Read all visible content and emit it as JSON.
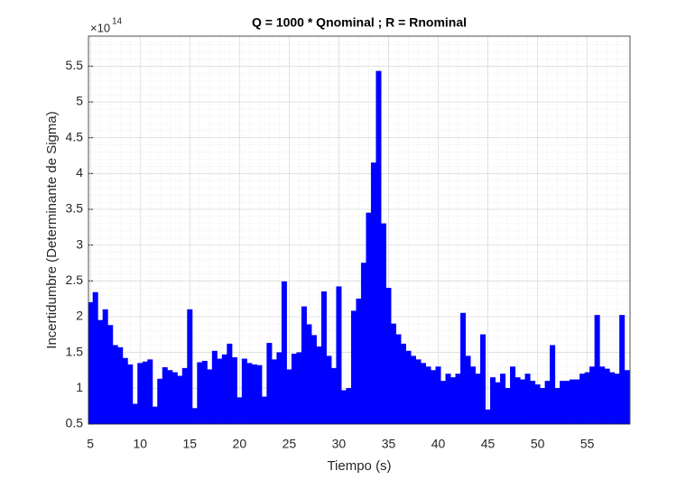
{
  "chart_data": {
    "type": "bar",
    "title": "Q = 1000 * Qnominal ; R = Rnominal",
    "x_label": "Tiempo (s)",
    "y_label": "Incertidumbre (Determinante de Sigma)",
    "y_multiplier": {
      "base": "×10",
      "exponent": "14"
    },
    "color": "#0000ff",
    "bar_width": 0.5,
    "x": [
      5,
      5.5,
      6,
      6.5,
      7,
      7.5,
      8,
      8.5,
      9,
      9.5,
      10,
      10.5,
      11,
      11.5,
      12,
      12.5,
      13,
      13.5,
      14,
      14.5,
      15,
      15.5,
      16,
      16.5,
      17,
      17.5,
      18,
      18.5,
      19,
      19.5,
      20,
      20.5,
      21,
      21.5,
      22,
      22.5,
      23,
      23.5,
      24,
      24.5,
      25,
      25.5,
      26,
      26.5,
      27,
      27.5,
      28,
      28.5,
      29,
      29.5,
      30,
      30.5,
      31,
      31.5,
      32,
      32.5,
      33,
      33.5,
      34,
      34.5,
      35,
      35.5,
      36,
      36.5,
      37,
      37.5,
      38,
      38.5,
      39,
      39.5,
      40,
      40.5,
      41,
      41.5,
      42,
      42.5,
      43,
      43.5,
      44,
      44.5,
      45,
      45.5,
      46,
      46.5,
      47,
      47.5,
      48,
      48.5,
      49,
      49.5,
      50,
      50.5,
      51,
      51.5,
      52,
      52.5,
      53,
      53.5,
      54,
      54.5,
      55,
      55.5,
      56,
      56.5,
      57,
      57.5,
      58,
      58.5,
      59
    ],
    "values": [
      2.2,
      2.34,
      1.95,
      2.1,
      1.88,
      1.6,
      1.57,
      1.42,
      1.33,
      0.78,
      1.35,
      1.37,
      1.4,
      0.74,
      1.13,
      1.29,
      1.25,
      1.22,
      1.17,
      1.28,
      2.1,
      0.72,
      1.36,
      1.38,
      1.26,
      1.52,
      1.41,
      1.47,
      1.62,
      1.43,
      0.87,
      1.41,
      1.35,
      1.33,
      1.32,
      0.88,
      1.63,
      1.4,
      1.5,
      2.49,
      1.26,
      1.48,
      1.5,
      2.14,
      1.89,
      1.74,
      1.58,
      2.35,
      1.45,
      1.28,
      2.42,
      0.97,
      1.0,
      2.08,
      2.25,
      2.75,
      3.45,
      4.15,
      5.43,
      3.3,
      2.4,
      1.9,
      1.75,
      1.62,
      1.52,
      1.45,
      1.4,
      1.35,
      1.3,
      1.25,
      1.3,
      1.1,
      1.2,
      1.15,
      1.2,
      2.05,
      1.45,
      1.3,
      1.2,
      1.75,
      0.7,
      1.15,
      1.08,
      1.2,
      1.0,
      1.3,
      1.15,
      1.12,
      1.2,
      1.1,
      1.05,
      1.0,
      1.1,
      1.6,
      1.0,
      1.1,
      1.1,
      1.12,
      1.12,
      1.2,
      1.22,
      1.3,
      2.02,
      1.3,
      1.27,
      1.22,
      1.2,
      2.02,
      1.25
    ],
    "xlim": [
      4.8,
      59.3
    ],
    "ylim": [
      0.5,
      5.92
    ],
    "xticks": [
      5,
      10,
      15,
      20,
      25,
      30,
      35,
      40,
      45,
      50,
      55
    ],
    "yticks": [
      0.5,
      1,
      1.5,
      2,
      2.5,
      3,
      3.5,
      4,
      4.5,
      5,
      5.5
    ],
    "grid": true,
    "minor_grid": true
  }
}
